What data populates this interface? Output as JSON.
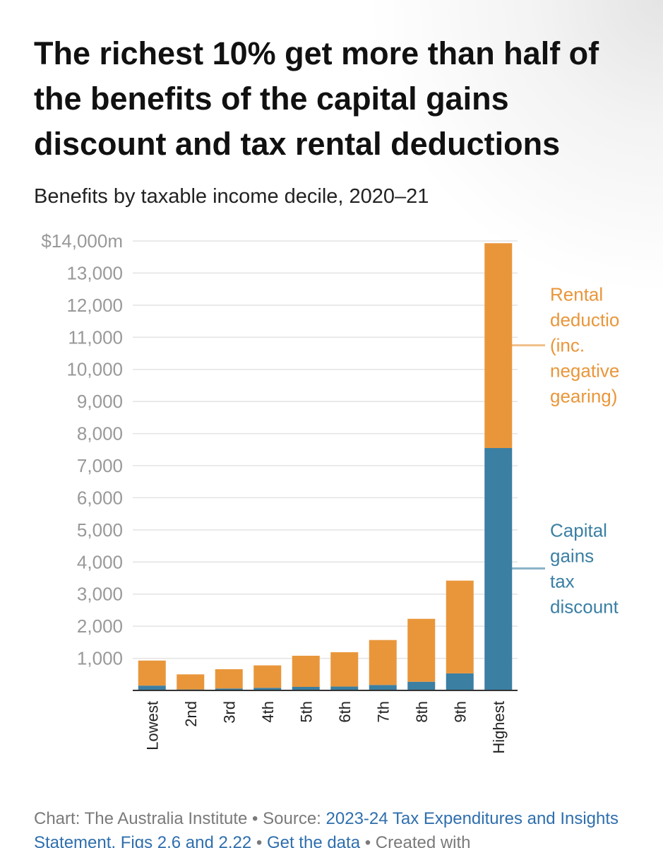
{
  "title": "The richest 10% get more than half of the benefits of the capital gains discount and tax rental deductions",
  "subtitle": "Benefits by taxable income decile, 2020–21",
  "colors": {
    "capital_gains": "#3b7fa3",
    "rental": "#e9963a",
    "grid": "#e3e3e3",
    "axis": "#333333",
    "tick_text": "#999999",
    "label_text": "#222222"
  },
  "chart_data": {
    "type": "bar",
    "stacked": true,
    "categories": [
      "Lowest",
      "2nd",
      "3rd",
      "4th",
      "5th",
      "6th",
      "7th",
      "8th",
      "9th",
      "Highest"
    ],
    "series": [
      {
        "name": "Capital gains tax discount",
        "color": "#3b7fa3",
        "values": [
          150,
          30,
          60,
          80,
          110,
          120,
          170,
          270,
          530,
          7550
        ]
      },
      {
        "name": "Rental deductio (inc. negative gearing)",
        "color": "#e9963a",
        "values": [
          780,
          470,
          600,
          700,
          970,
          1070,
          1400,
          1960,
          2890,
          6380
        ]
      }
    ],
    "ylim": [
      0,
      14000
    ],
    "yticks": [
      1000,
      2000,
      3000,
      4000,
      5000,
      6000,
      7000,
      8000,
      9000,
      10000,
      11000,
      12000,
      13000,
      14000
    ],
    "ytick_labels": [
      "1,000",
      "2,000",
      "3,000",
      "4,000",
      "5,000",
      "6,000",
      "7,000",
      "8,000",
      "9,000",
      "10,000",
      "11,000",
      "12,000",
      "13,000",
      "$14,000m"
    ],
    "grid": true,
    "legend": "direct labels on the right",
    "series_labels": [
      {
        "series": "Rental deductio (inc. negative gearing)",
        "lines": [
          "Rental",
          "deductio",
          "(inc.",
          "negative",
          "gearing)"
        ],
        "anchor_value": 10750
      },
      {
        "series": "Capital gains tax discount",
        "lines": [
          "Capital",
          "gains",
          "tax",
          "discount"
        ],
        "anchor_value": 3800
      }
    ],
    "xlabel": "",
    "ylabel": ""
  },
  "footer": {
    "credit": "Chart: The Australia Institute",
    "sep1": " • ",
    "source_label": "Source: ",
    "source_link": "2023-24 Tax Expenditures and Insights Statement, Figs 2.6 and 2.22",
    "sep2": " • ",
    "data_link": "Get the data",
    "sep3": " • ",
    "created": "Created with"
  }
}
